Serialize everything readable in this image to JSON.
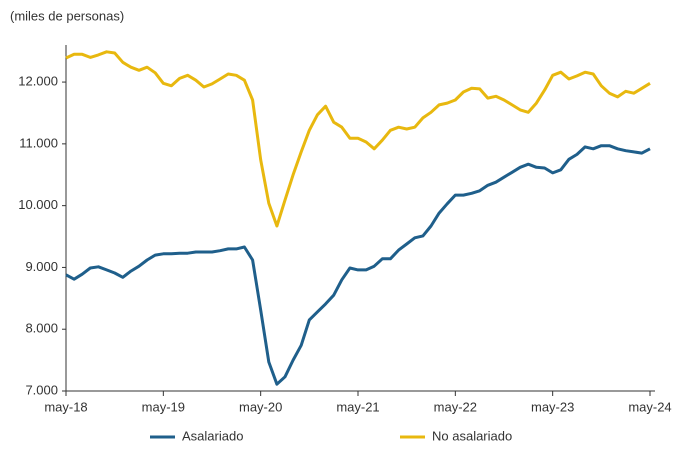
{
  "chart_data": {
    "type": "line",
    "y_unit_label": "(miles de personas)",
    "categories": [
      "may-18",
      null,
      null,
      null,
      null,
      null,
      null,
      null,
      null,
      null,
      null,
      null,
      "may-19",
      null,
      null,
      null,
      null,
      null,
      null,
      null,
      null,
      null,
      null,
      null,
      "may-20",
      null,
      null,
      null,
      null,
      null,
      null,
      null,
      null,
      null,
      null,
      null,
      "may-21",
      null,
      null,
      null,
      null,
      null,
      null,
      null,
      null,
      null,
      null,
      null,
      "may-22",
      null,
      null,
      null,
      null,
      null,
      null,
      null,
      null,
      null,
      null,
      null,
      "may-23",
      null,
      null,
      null,
      null,
      null,
      null,
      null,
      null,
      null,
      null,
      null,
      "may-24"
    ],
    "series": [
      {
        "name": "Asalariado",
        "color": "#1f5f8b",
        "values": [
          8880,
          8810,
          8890,
          8990,
          9010,
          8960,
          8910,
          8840,
          8940,
          9020,
          9120,
          9200,
          9220,
          9220,
          9230,
          9230,
          9250,
          9250,
          9250,
          9270,
          9300,
          9300,
          9330,
          9120,
          8310,
          7470,
          7110,
          7230,
          7500,
          7740,
          8150,
          8280,
          8410,
          8550,
          8800,
          8990,
          8960,
          8960,
          9020,
          9140,
          9140,
          9280,
          9380,
          9480,
          9510,
          9670,
          9880,
          10030,
          10170,
          10170,
          10200,
          10240,
          10330,
          10380,
          10460,
          10540,
          10620,
          10670,
          10620,
          10610,
          10530,
          10580,
          10750,
          10830,
          10950,
          10920,
          10970,
          10970,
          10920,
          10890,
          10870,
          10850,
          10920
        ]
      },
      {
        "name": "No asalariado",
        "color": "#e8b80f",
        "values": [
          12390,
          12450,
          12450,
          12400,
          12440,
          12490,
          12470,
          12320,
          12240,
          12190,
          12240,
          12150,
          11980,
          11940,
          12060,
          12110,
          12030,
          11920,
          11970,
          12050,
          12130,
          12110,
          12030,
          11710,
          10740,
          10040,
          9670,
          10090,
          10500,
          10870,
          11220,
          11470,
          11610,
          11350,
          11270,
          11090,
          11090,
          11030,
          10920,
          11060,
          11220,
          11270,
          11240,
          11270,
          11420,
          11510,
          11630,
          11660,
          11710,
          11840,
          11900,
          11890,
          11740,
          11770,
          11710,
          11630,
          11550,
          11510,
          11660,
          11870,
          12110,
          12160,
          12050,
          12100,
          12160,
          12130,
          11940,
          11820,
          11760,
          11850,
          11820,
          11900,
          11980
        ]
      }
    ],
    "ylim": [
      7000,
      12600
    ],
    "yticks": [
      {
        "value": 7000,
        "label": "7.000"
      },
      {
        "value": 8000,
        "label": "8.000"
      },
      {
        "value": 9000,
        "label": "9.000"
      },
      {
        "value": 10000,
        "label": "10.000"
      },
      {
        "value": 11000,
        "label": "11.000"
      },
      {
        "value": 12000,
        "label": "12.000"
      }
    ],
    "grid": false
  }
}
